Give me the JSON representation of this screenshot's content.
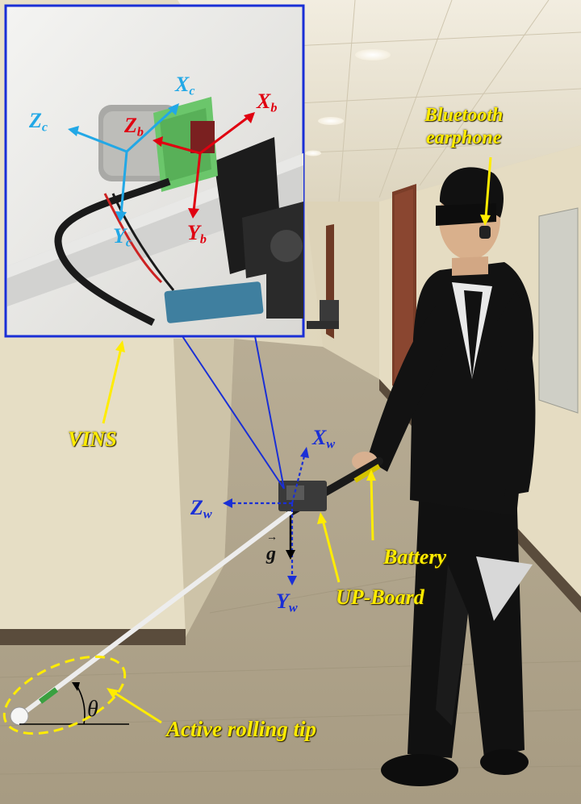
{
  "labels": {
    "bluetooth_line1": "Bluetooth",
    "bluetooth_line2": "earphone",
    "vins": "VINS",
    "battery": "Battery",
    "upboard": "UP-Board",
    "rolling_tip": "Active rolling tip",
    "theta": "θ",
    "gravity": "g"
  },
  "frames": {
    "camera": {
      "x": "X",
      "y": "Y",
      "z": "Z",
      "sub": "c"
    },
    "body": {
      "x": "X",
      "y": "Y",
      "z": "Z",
      "sub": "b"
    },
    "world": {
      "x": "X",
      "y": "Y",
      "z": "Z",
      "sub": "w"
    }
  },
  "colors": {
    "label_yellow": "#ffec00",
    "world_frame": "#1a2fd6",
    "camera_frame": "#22a8e6",
    "body_frame": "#e00010",
    "inset_border": "#1a2fd6"
  },
  "icons": {
    "inset": "camera-imu-closeup",
    "earphone": "bluetooth-earphone-icon"
  }
}
